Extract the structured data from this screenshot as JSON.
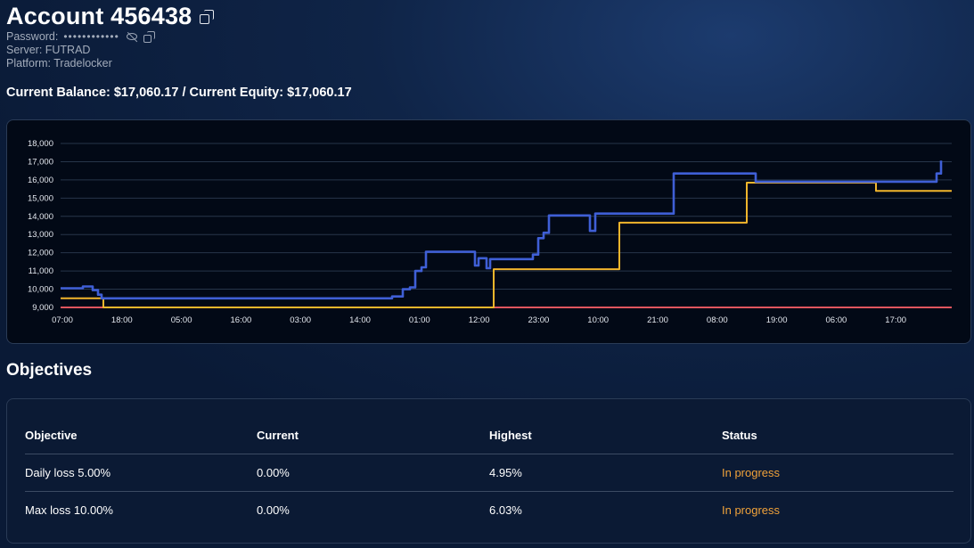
{
  "account": {
    "title": "Account 456438",
    "password_label": "Password:",
    "password_masked": "••••••••••••",
    "server": "Server: FUTRAD",
    "platform": "Platform: Tradelocker"
  },
  "balance_line": "Current Balance: $17,060.17 / Current Equity: $17,060.17",
  "colors": {
    "equity_line": "#3f5fd6",
    "balance_line": "#f2b62c",
    "max_loss_line": "#e0555e",
    "status_in_progress": "#f0a23a"
  },
  "chart_data": {
    "type": "line",
    "ylim": [
      9000,
      18000
    ],
    "y_ticks": [
      "9,000",
      "10,000",
      "11,000",
      "12,000",
      "13,000",
      "14,000",
      "15,000",
      "16,000",
      "17,000",
      "18,000"
    ],
    "x_tick_labels": [
      "07:00",
      "18:00",
      "05:00",
      "16:00",
      "03:00",
      "14:00",
      "01:00",
      "12:00",
      "23:00",
      "10:00",
      "21:00",
      "08:00",
      "19:00",
      "06:00",
      "17:00"
    ],
    "x_range": [
      0,
      1000
    ],
    "grid": true,
    "legend": "none",
    "series": [
      {
        "key": "equity",
        "color": "#3f5fd6",
        "points": [
          [
            0,
            10050
          ],
          [
            25,
            10050
          ],
          [
            25,
            10150
          ],
          [
            36,
            10150
          ],
          [
            36,
            9950
          ],
          [
            42,
            9950
          ],
          [
            42,
            9700
          ],
          [
            46,
            9700
          ],
          [
            46,
            9500
          ],
          [
            372,
            9500
          ],
          [
            372,
            9600
          ],
          [
            384,
            9600
          ],
          [
            384,
            10000
          ],
          [
            392,
            10000
          ],
          [
            392,
            10100
          ],
          [
            398,
            10100
          ],
          [
            398,
            11000
          ],
          [
            405,
            11000
          ],
          [
            405,
            11200
          ],
          [
            410,
            11200
          ],
          [
            410,
            12050
          ],
          [
            465,
            12050
          ],
          [
            465,
            11300
          ],
          [
            469,
            11300
          ],
          [
            469,
            11700
          ],
          [
            478,
            11700
          ],
          [
            478,
            11150
          ],
          [
            482,
            11150
          ],
          [
            482,
            11650
          ],
          [
            530,
            11650
          ],
          [
            530,
            11900
          ],
          [
            536,
            11900
          ],
          [
            536,
            12800
          ],
          [
            542,
            12800
          ],
          [
            542,
            13100
          ],
          [
            548,
            13100
          ],
          [
            548,
            14050
          ],
          [
            594,
            14050
          ],
          [
            594,
            13200
          ],
          [
            600,
            13200
          ],
          [
            600,
            14150
          ],
          [
            688,
            14150
          ],
          [
            688,
            16350
          ],
          [
            780,
            16350
          ],
          [
            780,
            15900
          ],
          [
            983,
            15900
          ],
          [
            983,
            16350
          ],
          [
            988,
            16350
          ],
          [
            988,
            17060
          ]
        ]
      },
      {
        "key": "balance",
        "color": "#f2b62c",
        "points": [
          [
            0,
            9500
          ],
          [
            48,
            9500
          ],
          [
            48,
            9000
          ],
          [
            486,
            9000
          ],
          [
            486,
            11100
          ],
          [
            627,
            11100
          ],
          [
            627,
            13650
          ],
          [
            770,
            13650
          ],
          [
            770,
            15850
          ],
          [
            915,
            15850
          ],
          [
            915,
            15400
          ],
          [
            1000,
            15400
          ]
        ]
      },
      {
        "key": "max_loss",
        "color": "#e0555e",
        "points": [
          [
            0,
            9000
          ],
          [
            1000,
            9000
          ]
        ]
      }
    ]
  },
  "objectives": {
    "section_title": "Objectives",
    "headers": [
      "Objective",
      "Current",
      "Highest",
      "Status"
    ],
    "rows": [
      [
        "Daily loss 5.00%",
        "0.00%",
        "4.95%",
        "In progress"
      ],
      [
        "Max loss 10.00%",
        "0.00%",
        "6.03%",
        "In progress"
      ]
    ]
  }
}
